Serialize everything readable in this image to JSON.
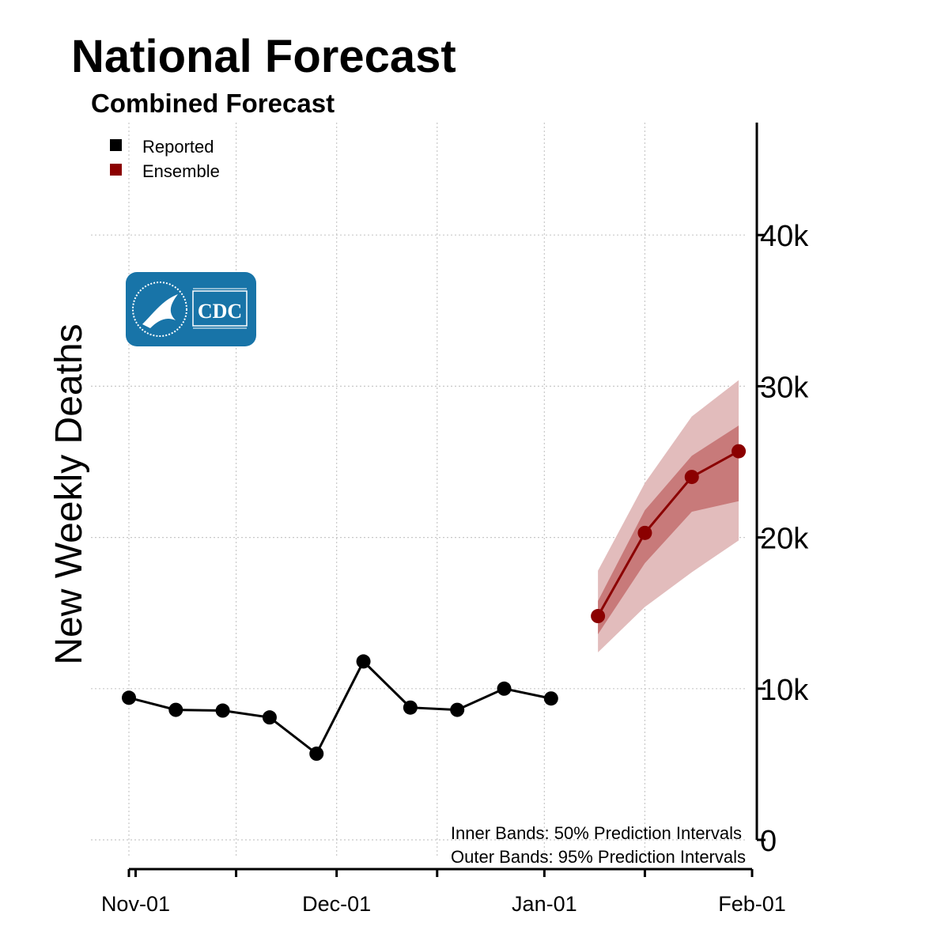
{
  "title": "National Forecast",
  "subtitle": "Combined Forecast",
  "logo": {
    "text": "CDC",
    "color": "#1874a8"
  },
  "chart_data": {
    "type": "line",
    "ylabel": "New Weekly Deaths",
    "xlabel": "",
    "x_ticks": [
      "Nov-01",
      "Dec-01",
      "Jan-01",
      "Feb-01"
    ],
    "y_ticks": [
      "0",
      "10k",
      "20k",
      "30k",
      "40k"
    ],
    "ylim": [
      0,
      47500
    ],
    "xlim": [
      "2020-10-31",
      "2021-02-01"
    ],
    "y_axis_position": "right",
    "grid": true,
    "legend_position": "top-left",
    "series": [
      {
        "name": "Reported",
        "color": "#000000",
        "points": [
          {
            "x": "2020-10-31",
            "y": 9400
          },
          {
            "x": "2020-11-07",
            "y": 8600
          },
          {
            "x": "2020-11-14",
            "y": 8550
          },
          {
            "x": "2020-11-21",
            "y": 8100
          },
          {
            "x": "2020-11-28",
            "y": 5700
          },
          {
            "x": "2020-12-05",
            "y": 11800
          },
          {
            "x": "2020-12-12",
            "y": 8750
          },
          {
            "x": "2020-12-19",
            "y": 8600
          },
          {
            "x": "2020-12-26",
            "y": 10000
          },
          {
            "x": "2021-01-02",
            "y": 9350
          }
        ]
      },
      {
        "name": "Ensemble",
        "color": "#8b0000",
        "points": [
          {
            "x": "2021-01-09",
            "y": 14800,
            "lo50": 13600,
            "hi50": 15800,
            "lo95": 12400,
            "hi95": 17800
          },
          {
            "x": "2021-01-16",
            "y": 20300,
            "lo50": 18300,
            "hi50": 21800,
            "lo95": 15400,
            "hi95": 23600
          },
          {
            "x": "2021-01-23",
            "y": 24000,
            "lo50": 21700,
            "hi50": 25400,
            "lo95": 17700,
            "hi95": 28000
          },
          {
            "x": "2021-01-30",
            "y": 25700,
            "lo50": 22400,
            "hi50": 27400,
            "lo95": 19800,
            "hi95": 30400
          }
        ]
      }
    ],
    "annotations": [
      "Inner Bands: 50% Prediction Intervals",
      "Outer Bands: 95% Prediction Intervals"
    ]
  }
}
